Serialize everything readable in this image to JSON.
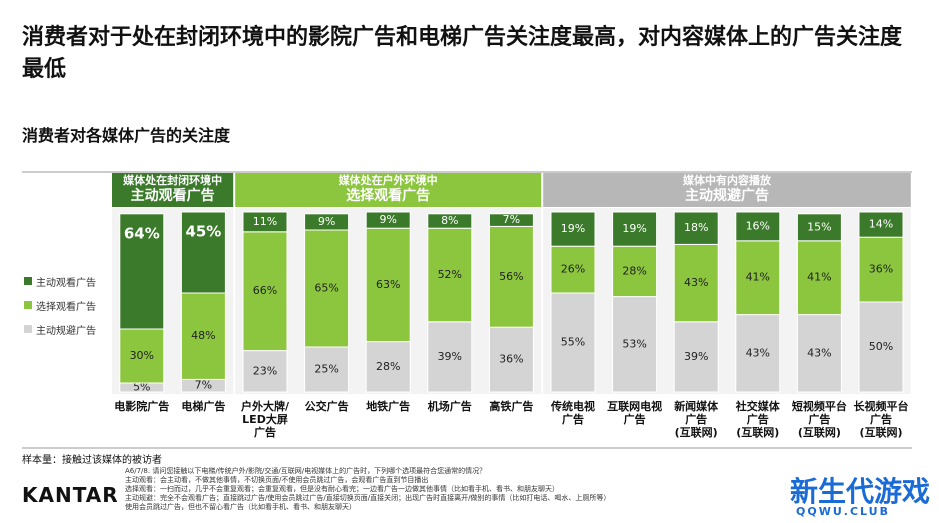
{
  "title": "消费者对于处在封闭环境中的影院广告和电梯广告关注度最高，对内容媒体上的广告关注度最低",
  "chart_data": {
    "type": "stacked_bar",
    "title": "消费者对各媒体广告的关注度",
    "groups": [
      {
        "name": "媒体处在封闭环境中",
        "title": "主动观看广告",
        "span": 2,
        "color": "#3b7a2a"
      },
      {
        "name": "媒体处在户外环境中",
        "title": "选择观看广告",
        "span": 5,
        "color": "#8cc63e"
      },
      {
        "name": "媒体中有内容播放",
        "title": "主动规避广告",
        "span": 6,
        "color": "#b7b7b7"
      }
    ],
    "categories": [
      "电影院广告",
      "电梯广告",
      "户外大牌/\nLED大屏\n广告",
      "公交广告",
      "地铁广告",
      "机场广告",
      "高铁广告",
      "传统电视\n广告",
      "互联网电视\n广告",
      "新闻媒体\n广告\n(互联网)",
      "社交媒体\n广告\n(互联网)",
      "短视频平台\n广告\n(互联网)",
      "长视频平台\n广告\n(互联网)"
    ],
    "series": [
      {
        "name": "主动规避广告",
        "color": "#d4d4d4",
        "values": [
          5,
          7,
          23,
          25,
          28,
          39,
          36,
          55,
          53,
          39,
          43,
          43,
          50
        ],
        "value_labels": [
          "5%",
          "7%",
          "23%",
          "25%",
          "28%",
          "39%",
          "36%",
          "55%",
          "53%",
          "39%",
          "43%",
          "43%",
          "50%"
        ]
      },
      {
        "name": "选择观看广告",
        "color": "#8cc63e",
        "values": [
          30,
          48,
          66,
          65,
          63,
          52,
          56,
          26,
          28,
          43,
          41,
          41,
          36
        ],
        "value_labels": [
          "30%",
          "48%",
          "66%",
          "65%",
          "63%",
          "52%",
          "56%",
          "26%",
          "28%",
          "43%",
          "41%",
          "41%",
          "36%"
        ]
      },
      {
        "name": "主动观看广告",
        "color": "#3b7a2a",
        "values": [
          64,
          45,
          11,
          9,
          9,
          8,
          7,
          19,
          19,
          18,
          16,
          15,
          14
        ],
        "value_labels": [
          "64%",
          "45%",
          "11%",
          "9%",
          "9%",
          "8%",
          "7%",
          "19%",
          "19%",
          "18%",
          "16%",
          "15%",
          "14%"
        ]
      }
    ]
  },
  "sample": "样本量：接触过该媒体的被访者",
  "notes": "A6/7/8. 请问您接触以下电梯/传统户外/影院/交通/互联网/电视媒体上的广告时，下列哪个选项最符合您通常的情况？\n主动观看：会主动看，不做其他事情，不切换页面/不使用会员跳过广告，会观看广告直到节目播出\n选择观看：一扫而过，几乎不会重复观看；会重复观看，但是没有耐心看完；一边看广告一边做其他事情（比如看手机、看书、和朋友聊天）\n主动规避：完全不会观看广告；直接跳过广告/使用会员跳过广告/直接切换页面/直接关闭；出现广告时直接离开/做别的事情（比如打电话、喝水、上厕所等）\n使用会员跳过广告，但也不留心看广告（比如看手机、看书、和朋友聊天）",
  "logo": "KANTAR",
  "watermark": "新生代游戏",
  "watermark_url": "QQWU.CLUB"
}
